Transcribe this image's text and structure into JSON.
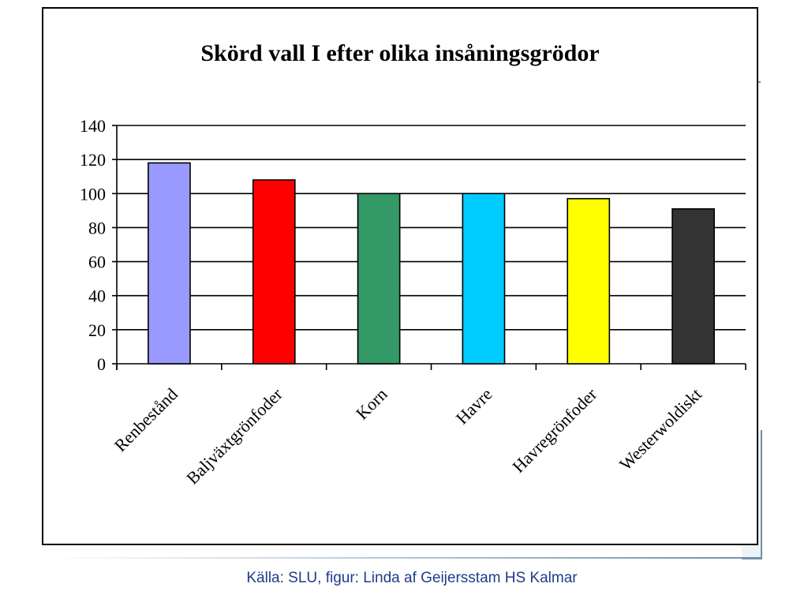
{
  "chart_data": {
    "type": "bar",
    "title": "Skörd vall I efter olika insåningsgrödor",
    "xlabel": "",
    "ylabel": "",
    "categories": [
      "Renbestånd",
      "Baljväxtgrönfoder",
      "Korn",
      "Havre",
      "Havregrönfoder",
      "Westerwoldiskt"
    ],
    "values": [
      118,
      108,
      100,
      100,
      97,
      91
    ],
    "colors": [
      "#9999ff",
      "#ff0000",
      "#339966",
      "#00ccff",
      "#ffff00",
      "#333333"
    ],
    "ylim": [
      0,
      140
    ],
    "yticks": [
      0,
      20,
      40,
      60,
      80,
      100,
      120,
      140
    ],
    "grid": true,
    "legend": "none"
  },
  "caption": "Källa: SLU, figur: Linda af Geijersstam HS Kalmar"
}
